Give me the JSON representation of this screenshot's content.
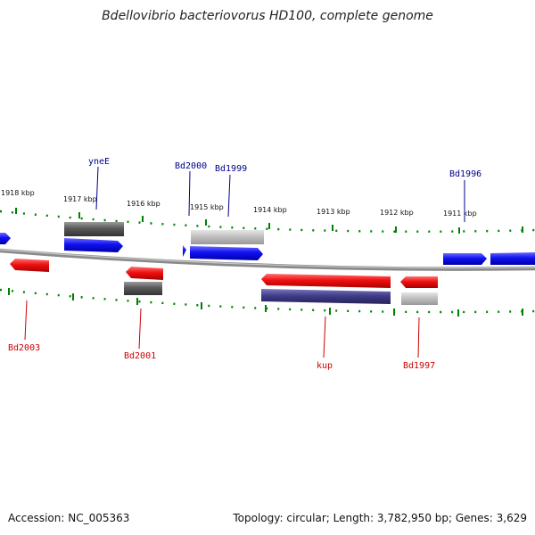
{
  "title": "Bdellovibrio bacteriovorus HD100, complete genome",
  "footer": {
    "accession": "Accession: NC_005363",
    "summary": "Topology: circular; Length: 3,782,950 bp; Genes: 3,629"
  },
  "colors": {
    "forward_gene": "#0000ee",
    "reverse_gene": "#ee0000",
    "rna_dark": "#555555",
    "rna_light": "#bbbbbb",
    "rna_purple": "#3d3a80",
    "label_blue": "#00008b",
    "label_red": "#cc0000",
    "tick_green": "#008000",
    "backbone": "#888888"
  },
  "scale_labels": [
    "1918 kbp",
    "1917 kbp",
    "1916 kbp",
    "1915 kbp",
    "1914 kbp",
    "1913 kbp",
    "1912 kbp",
    "1911 kbp"
  ],
  "gene_labels": {
    "top": [
      "yneE",
      "Bd2000",
      "Bd1999",
      "Bd1996"
    ],
    "bottom": [
      "Bd2003",
      "Bd2001",
      "kup",
      "Bd1997"
    ]
  }
}
